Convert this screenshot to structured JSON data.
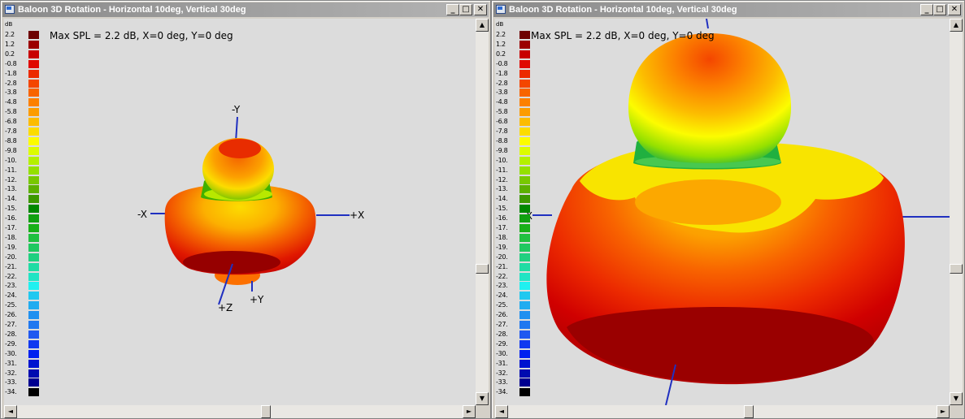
{
  "windows": [
    {
      "title": "Baloon 3D Rotation - Horizontal 10deg, Vertical 30deg",
      "max_spl": "Max SPL = 2.2 dB, X=0 deg, Y=0 deg",
      "axis_labels": {
        "neg_y": "-Y",
        "neg_x": "-X",
        "pos_x": "+X",
        "pos_z": "+Z",
        "pos_y": "+Y"
      }
    },
    {
      "title": "Baloon 3D Rotation - Horizontal 10deg, Vertical 30deg",
      "max_spl": "Max SPL = 2.2 dB, X=0 deg, Y=0 deg",
      "axis_labels": {
        "neg_x": "-X"
      }
    }
  ],
  "title_buttons": {
    "minimize": "_",
    "maximize": "□",
    "close": "✕"
  },
  "scroll_arrows": {
    "up": "▲",
    "down": "▼",
    "left": "◄",
    "right": "►"
  },
  "legend": {
    "unit": "dB",
    "entries": [
      {
        "label": "2.2",
        "color": "#6e0000"
      },
      {
        "label": "1.2",
        "color": "#9c0000"
      },
      {
        "label": "0.2",
        "color": "#c80000"
      },
      {
        "label": "-0.8",
        "color": "#e00800"
      },
      {
        "label": "-1.8",
        "color": "#ec2a00"
      },
      {
        "label": "-2.8",
        "color": "#f44600"
      },
      {
        "label": "-3.8",
        "color": "#f86400"
      },
      {
        "label": "-4.8",
        "color": "#fc8000"
      },
      {
        "label": "-5.8",
        "color": "#fc9c00"
      },
      {
        "label": "-6.8",
        "color": "#fcbc00"
      },
      {
        "label": "-7.8",
        "color": "#fcdc00"
      },
      {
        "label": "-8.8",
        "color": "#fcfc00"
      },
      {
        "label": "-9.8",
        "color": "#dcfc00"
      },
      {
        "label": "-10.",
        "color": "#b4f000"
      },
      {
        "label": "-11.",
        "color": "#94e000"
      },
      {
        "label": "-12.",
        "color": "#78c800"
      },
      {
        "label": "-13.",
        "color": "#5cb000"
      },
      {
        "label": "-14.",
        "color": "#3c9800"
      },
      {
        "label": "-15.",
        "color": "#008800"
      },
      {
        "label": "-16.",
        "color": "#10a010"
      },
      {
        "label": "-17.",
        "color": "#18b018"
      },
      {
        "label": "-18.",
        "color": "#20c040"
      },
      {
        "label": "-19.",
        "color": "#20c860"
      },
      {
        "label": "-20.",
        "color": "#20d080"
      },
      {
        "label": "-21.",
        "color": "#20dca4"
      },
      {
        "label": "-22.",
        "color": "#20e4c4"
      },
      {
        "label": "-23.",
        "color": "#20f0f0"
      },
      {
        "label": "-24.",
        "color": "#20c8f0"
      },
      {
        "label": "-25.",
        "color": "#20acf0"
      },
      {
        "label": "-26.",
        "color": "#2090f0"
      },
      {
        "label": "-27.",
        "color": "#2078f0"
      },
      {
        "label": "-28.",
        "color": "#2058f0"
      },
      {
        "label": "-29.",
        "color": "#1038f0"
      },
      {
        "label": "-30.",
        "color": "#0020f0"
      },
      {
        "label": "-31.",
        "color": "#0014d0"
      },
      {
        "label": "-32.",
        "color": "#000cb0"
      },
      {
        "label": "-33.",
        "color": "#000090"
      },
      {
        "label": "-34.",
        "color": "#000000"
      }
    ]
  }
}
